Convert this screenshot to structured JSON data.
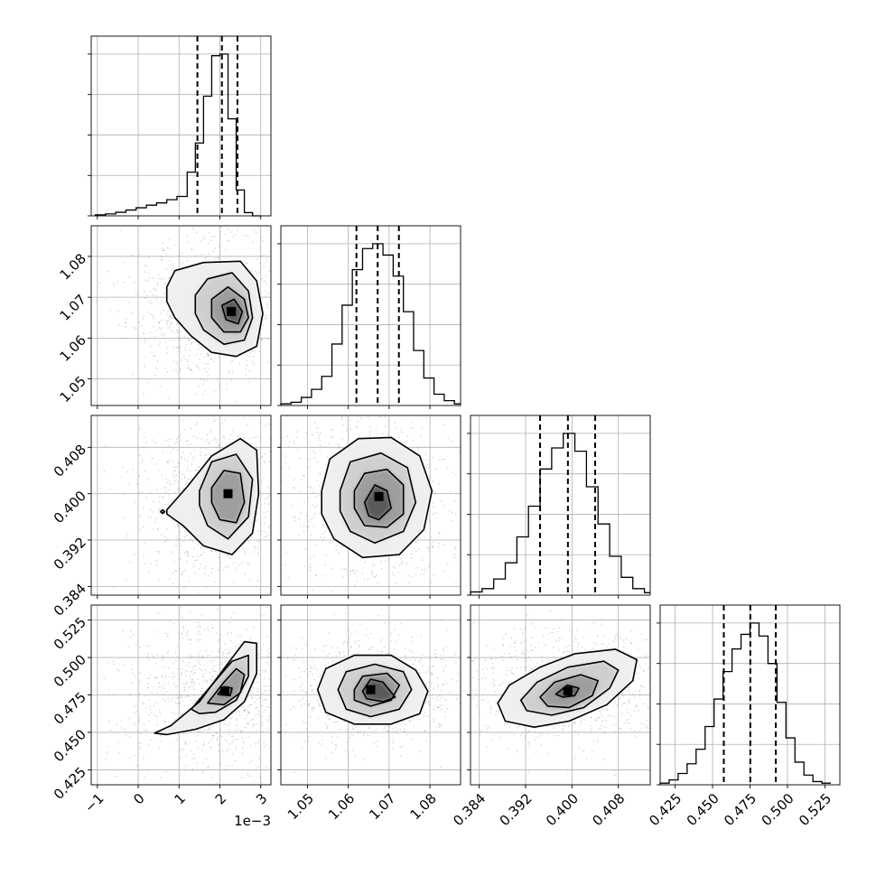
{
  "chart_data": {
    "type": "corner",
    "parameters": [
      {
        "id": "p1",
        "range": [
          -0.00115,
          0.00325
        ],
        "ticks": [
          -0.001,
          0,
          0.001,
          0.002,
          0.003
        ],
        "tick_labels": [
          "−1",
          "0",
          "1",
          "2",
          "3"
        ],
        "offset_text": "1e−3"
      },
      {
        "id": "p2",
        "range": [
          1.0435,
          1.0875
        ],
        "ticks": [
          1.05,
          1.06,
          1.07,
          1.08
        ],
        "tick_labels": [
          "1.05",
          "1.06",
          "1.07",
          "1.08"
        ]
      },
      {
        "id": "p3",
        "range": [
          0.3825,
          0.4135
        ],
        "ticks": [
          0.384,
          0.392,
          0.4,
          0.408
        ],
        "tick_labels": [
          "0.384",
          "0.392",
          "0.400",
          "0.408"
        ]
      },
      {
        "id": "p4",
        "range": [
          0.415,
          0.535
        ],
        "ticks": [
          0.425,
          0.45,
          0.475,
          0.5,
          0.525
        ],
        "tick_labels": [
          "0.425",
          "0.450",
          "0.475",
          "0.500",
          "0.525"
        ]
      }
    ],
    "histograms": [
      {
        "param": "p1",
        "bins": [
          -0.00105,
          -0.0008,
          -0.00055,
          -0.0003,
          -5e-05,
          0.0002,
          0.00045,
          0.0007,
          0.00095,
          0.0012,
          0.0014,
          0.0016,
          0.0018,
          0.002,
          0.0022,
          0.0024,
          0.0026,
          0.0028,
          0.003
        ],
        "counts": [
          0.006,
          0.012,
          0.022,
          0.036,
          0.05,
          0.066,
          0.08,
          0.1,
          0.12,
          0.27,
          0.45,
          0.74,
          0.99,
          1.0,
          0.6,
          0.16,
          0.02,
          0.0
        ],
        "quantiles": [
          0.00145,
          0.00205,
          0.00243
        ]
      },
      {
        "param": "p2",
        "bins": [
          1.0435,
          1.046,
          1.0485,
          1.051,
          1.0535,
          1.056,
          1.0585,
          1.061,
          1.0635,
          1.066,
          1.0685,
          1.071,
          1.0735,
          1.076,
          1.0785,
          1.081,
          1.0835,
          1.086,
          1.0875
        ],
        "counts": [
          0.01,
          0.02,
          0.05,
          0.1,
          0.18,
          0.38,
          0.62,
          0.84,
          0.97,
          1.0,
          0.93,
          0.8,
          0.58,
          0.34,
          0.17,
          0.07,
          0.03,
          0.01
        ],
        "quantiles": [
          1.062,
          1.0672,
          1.0724
        ]
      },
      {
        "param": "p3",
        "bins": [
          0.3825,
          0.3845,
          0.3865,
          0.3885,
          0.3905,
          0.3925,
          0.3945,
          0.3965,
          0.3985,
          0.4005,
          0.4025,
          0.4045,
          0.4065,
          0.4085,
          0.4105,
          0.4125,
          0.4135
        ],
        "counts": [
          0.02,
          0.04,
          0.1,
          0.2,
          0.36,
          0.55,
          0.78,
          0.91,
          1.0,
          0.89,
          0.67,
          0.44,
          0.24,
          0.11,
          0.04,
          0.015
        ],
        "quantiles": [
          0.3945,
          0.3993,
          0.404
        ]
      },
      {
        "param": "p4",
        "bins": [
          0.415,
          0.421,
          0.427,
          0.433,
          0.439,
          0.445,
          0.451,
          0.457,
          0.463,
          0.469,
          0.475,
          0.481,
          0.487,
          0.493,
          0.499,
          0.505,
          0.511,
          0.517,
          0.523,
          0.529
        ],
        "counts": [
          0.01,
          0.03,
          0.07,
          0.13,
          0.22,
          0.36,
          0.53,
          0.7,
          0.84,
          0.93,
          1.0,
          0.92,
          0.75,
          0.51,
          0.29,
          0.14,
          0.06,
          0.02,
          0.01
        ],
        "quantiles": [
          0.4575,
          0.4752,
          0.4922
        ]
      }
    ],
    "pairs": [
      {
        "x": "p1",
        "y": "p2",
        "peak": [
          0.00228,
          1.0665
        ],
        "contours": [
          [
            [
              0.0007,
              1.0725
            ],
            [
              0.0009,
              1.0765
            ],
            [
              0.0016,
              1.0785
            ],
            [
              0.0025,
              1.0788
            ],
            [
              0.0029,
              1.074
            ],
            [
              0.00305,
              1.066
            ],
            [
              0.0029,
              1.058
            ],
            [
              0.0024,
              1.0555
            ],
            [
              0.0018,
              1.0565
            ],
            [
              0.0013,
              1.0605
            ],
            [
              0.0009,
              1.065
            ],
            [
              0.0007,
              1.069
            ]
          ],
          [
            [
              0.0014,
              1.0705
            ],
            [
              0.0017,
              1.0745
            ],
            [
              0.0023,
              1.076
            ],
            [
              0.0027,
              1.0715
            ],
            [
              0.0028,
              1.065
            ],
            [
              0.0026,
              1.0595
            ],
            [
              0.0021,
              1.0585
            ],
            [
              0.0016,
              1.062
            ],
            [
              0.0014,
              1.066
            ]
          ],
          [
            [
              0.0018,
              1.0695
            ],
            [
              0.0022,
              1.0725
            ],
            [
              0.0026,
              1.0695
            ],
            [
              0.0027,
              1.065
            ],
            [
              0.0025,
              1.0615
            ],
            [
              0.0021,
              1.0615
            ],
            [
              0.0018,
              1.065
            ]
          ],
          [
            [
              0.00205,
              1.068
            ],
            [
              0.00235,
              1.0695
            ],
            [
              0.00255,
              1.0665
            ],
            [
              0.00245,
              1.0635
            ],
            [
              0.00215,
              1.0645
            ]
          ]
        ]
      },
      {
        "x": "p1",
        "y": "p3",
        "peak": [
          0.0022,
          0.4
        ],
        "contours": [
          [
            [
              0.0007,
              0.3972
            ],
            [
              0.0012,
              0.4012
            ],
            [
              0.0018,
              0.4065
            ],
            [
              0.0025,
              0.4095
            ],
            [
              0.0029,
              0.4075
            ],
            [
              0.00295,
              0.4
            ],
            [
              0.0028,
              0.3932
            ],
            [
              0.0023,
              0.3895
            ],
            [
              0.0016,
              0.391
            ],
            [
              0.0011,
              0.3945
            ],
            [
              0.0007,
              0.3965
            ]
          ],
          [
            [
              0.0015,
              0.4005
            ],
            [
              0.0018,
              0.4055
            ],
            [
              0.0024,
              0.4068
            ],
            [
              0.0028,
              0.4025
            ],
            [
              0.0027,
              0.396
            ],
            [
              0.0022,
              0.3922
            ],
            [
              0.0017,
              0.3945
            ],
            [
              0.0015,
              0.398
            ]
          ],
          [
            [
              0.0018,
              0.401
            ],
            [
              0.0021,
              0.404
            ],
            [
              0.0025,
              0.4035
            ],
            [
              0.0026,
              0.3985
            ],
            [
              0.0024,
              0.395
            ],
            [
              0.002,
              0.3955
            ],
            [
              0.0018,
              0.3985
            ]
          ],
          [
            [
              0.00055,
              0.3969
            ],
            [
              0.0006,
              0.3966
            ],
            [
              0.00065,
              0.3969
            ],
            [
              0.0006,
              0.3972
            ]
          ]
        ]
      },
      {
        "x": "p2",
        "y": "p3",
        "peak": [
          1.0675,
          0.3995
        ],
        "contours": [
          [
            [
              1.0535,
              0.4005
            ],
            [
              1.0555,
              0.406
            ],
            [
              1.0625,
              0.4095
            ],
            [
              1.0705,
              0.4097
            ],
            [
              1.0775,
              0.4065
            ],
            [
              1.0805,
              0.4005
            ],
            [
              1.0785,
              0.3938
            ],
            [
              1.0725,
              0.3895
            ],
            [
              1.0635,
              0.389
            ],
            [
              1.0565,
              0.3922
            ],
            [
              1.0535,
              0.3965
            ]
          ],
          [
            [
              1.058,
              0.4005
            ],
            [
              1.0605,
              0.4055
            ],
            [
              1.068,
              0.407
            ],
            [
              1.0745,
              0.4045
            ],
            [
              1.0765,
              0.3985
            ],
            [
              1.0735,
              0.3935
            ],
            [
              1.0665,
              0.3915
            ],
            [
              1.0605,
              0.3935
            ],
            [
              1.058,
              0.397
            ]
          ],
          [
            [
              1.0615,
              0.4005
            ],
            [
              1.064,
              0.4035
            ],
            [
              1.0695,
              0.4042
            ],
            [
              1.0735,
              0.4015
            ],
            [
              1.0735,
              0.3965
            ],
            [
              1.0695,
              0.3942
            ],
            [
              1.064,
              0.3945
            ],
            [
              1.0615,
              0.3975
            ]
          ],
          [
            [
              1.064,
              0.3985
            ],
            [
              1.0665,
              0.4015
            ],
            [
              1.0695,
              0.4005
            ],
            [
              1.0705,
              0.3975
            ],
            [
              1.0675,
              0.3955
            ],
            [
              1.065,
              0.3962
            ]
          ]
        ]
      },
      {
        "x": "p1",
        "y": "p4",
        "peak": [
          0.00212,
          0.4775
        ],
        "contours": [
          [
            [
              0.0004,
              0.4495
            ],
            [
              0.0008,
              0.4545
            ],
            [
              0.0015,
              0.4705
            ],
            [
              0.0021,
              0.4925
            ],
            [
              0.0026,
              0.5105
            ],
            [
              0.0029,
              0.5095
            ],
            [
              0.0029,
              0.4895
            ],
            [
              0.0026,
              0.4705
            ],
            [
              0.0021,
              0.4585
            ],
            [
              0.0014,
              0.452
            ],
            [
              0.0007,
              0.4485
            ]
          ],
          [
            [
              0.0013,
              0.4655
            ],
            [
              0.0018,
              0.4815
            ],
            [
              0.0023,
              0.4975
            ],
            [
              0.0027,
              0.5015
            ],
            [
              0.0027,
              0.4875
            ],
            [
              0.0024,
              0.4715
            ],
            [
              0.0019,
              0.4635
            ],
            [
              0.0015,
              0.4625
            ]
          ],
          [
            [
              0.0017,
              0.4695
            ],
            [
              0.0021,
              0.4835
            ],
            [
              0.0024,
              0.4925
            ],
            [
              0.0026,
              0.4885
            ],
            [
              0.0025,
              0.4765
            ],
            [
              0.0021,
              0.4685
            ]
          ],
          [
            [
              0.00195,
              0.4755
            ],
            [
              0.0021,
              0.4805
            ],
            [
              0.0023,
              0.4795
            ],
            [
              0.00225,
              0.4745
            ]
          ]
        ]
      },
      {
        "x": "p2",
        "y": "p4",
        "peak": [
          1.0655,
          0.4785
        ],
        "contours": [
          [
            [
              1.0525,
              0.4785
            ],
            [
              1.0545,
              0.4925
            ],
            [
              1.0615,
              0.5015
            ],
            [
              1.0705,
              0.5015
            ],
            [
              1.0765,
              0.4915
            ],
            [
              1.0795,
              0.4775
            ],
            [
              1.0775,
              0.4625
            ],
            [
              1.0705,
              0.4555
            ],
            [
              1.0615,
              0.4555
            ],
            [
              1.0545,
              0.4635
            ]
          ],
          [
            [
              1.0575,
              0.4785
            ],
            [
              1.0595,
              0.4905
            ],
            [
              1.0665,
              0.4955
            ],
            [
              1.0735,
              0.4905
            ],
            [
              1.0755,
              0.4785
            ],
            [
              1.0725,
              0.4655
            ],
            [
              1.0655,
              0.4605
            ],
            [
              1.0595,
              0.4655
            ]
          ],
          [
            [
              1.0615,
              0.4785
            ],
            [
              1.0635,
              0.4875
            ],
            [
              1.0695,
              0.4895
            ],
            [
              1.0725,
              0.4815
            ],
            [
              1.0705,
              0.4715
            ],
            [
              1.0655,
              0.4675
            ],
            [
              1.0615,
              0.4715
            ]
          ],
          [
            [
              1.0635,
              0.4775
            ],
            [
              1.0655,
              0.4855
            ],
            [
              1.0685,
              0.4835
            ],
            [
              1.0715,
              0.4735
            ],
            [
              1.0685,
              0.4705
            ],
            [
              1.0645,
              0.4725
            ]
          ]
        ]
      },
      {
        "x": "p3",
        "y": "p4",
        "peak": [
          0.3993,
          0.4775
        ],
        "contours": [
          [
            [
              0.3872,
              0.4695
            ],
            [
              0.3892,
              0.4815
            ],
            [
              0.3945,
              0.4935
            ],
            [
              0.4005,
              0.5025
            ],
            [
              0.4075,
              0.5055
            ],
            [
              0.4112,
              0.4985
            ],
            [
              0.4105,
              0.4845
            ],
            [
              0.406,
              0.4685
            ],
            [
              0.3995,
              0.4575
            ],
            [
              0.3935,
              0.4535
            ],
            [
              0.3885,
              0.4575
            ]
          ],
          [
            [
              0.3912,
              0.4715
            ],
            [
              0.394,
              0.4835
            ],
            [
              0.3993,
              0.4935
            ],
            [
              0.4055,
              0.4975
            ],
            [
              0.408,
              0.4915
            ],
            [
              0.4065,
              0.4795
            ],
            [
              0.402,
              0.4665
            ],
            [
              0.3965,
              0.4615
            ],
            [
              0.3922,
              0.4645
            ]
          ],
          [
            [
              0.3945,
              0.4735
            ],
            [
              0.397,
              0.4835
            ],
            [
              0.4015,
              0.4885
            ],
            [
              0.4045,
              0.4845
            ],
            [
              0.4035,
              0.4745
            ],
            [
              0.3995,
              0.4665
            ],
            [
              0.3958,
              0.4675
            ]
          ],
          [
            [
              0.3972,
              0.4755
            ],
            [
              0.3992,
              0.4815
            ],
            [
              0.4012,
              0.4795
            ],
            [
              0.4005,
              0.4745
            ],
            [
              0.3985,
              0.4735
            ]
          ]
        ]
      }
    ]
  }
}
